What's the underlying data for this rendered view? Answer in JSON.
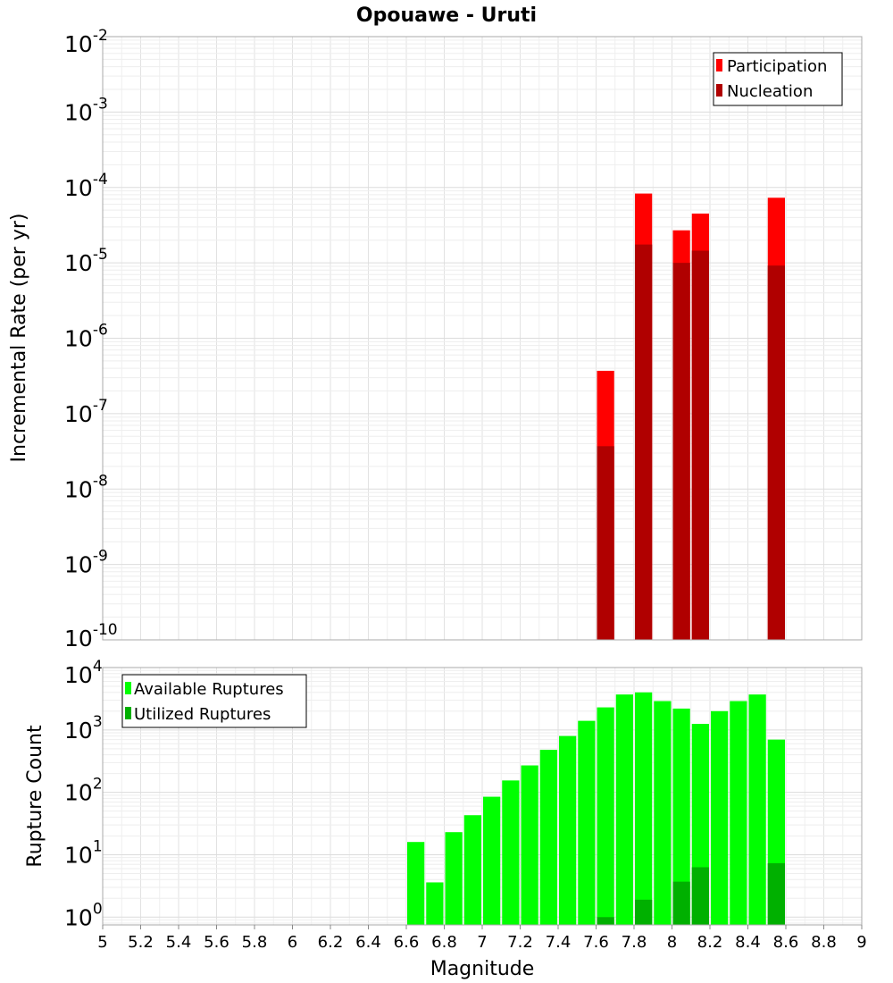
{
  "chart_data": [
    {
      "type": "bar",
      "panel": "top",
      "title": "Opouawe - Uruti",
      "ylabel": "Incremental Rate (per yr)",
      "yscale": "log",
      "ylim": [
        1e-10,
        0.01
      ],
      "xlim": [
        5,
        9
      ],
      "grid": true,
      "legend_position": "top-right",
      "ytick_labels": [
        {
          "base": "10",
          "exp": "-10"
        },
        {
          "base": "10",
          "exp": "-9"
        },
        {
          "base": "10",
          "exp": "-8"
        },
        {
          "base": "10",
          "exp": "-7"
        },
        {
          "base": "10",
          "exp": "-6"
        },
        {
          "base": "10",
          "exp": "-5"
        },
        {
          "base": "10",
          "exp": "-4"
        },
        {
          "base": "10",
          "exp": "-3"
        },
        {
          "base": "10",
          "exp": "-2"
        }
      ],
      "series": [
        {
          "name": "Participation",
          "color": "#ff0000",
          "x": [
            7.65,
            7.85,
            8.05,
            8.15,
            8.55
          ],
          "values": [
            3.7e-07,
            8.3e-05,
            2.7e-05,
            4.5e-05,
            7.3e-05
          ]
        },
        {
          "name": "Nucleation",
          "color": "#b00000",
          "x": [
            7.65,
            7.85,
            8.05,
            8.15,
            8.55
          ],
          "values": [
            3.7e-08,
            1.75e-05,
            1e-05,
            1.45e-05,
            9.2e-06
          ]
        }
      ]
    },
    {
      "type": "bar",
      "panel": "bottom",
      "xlabel": "Magnitude",
      "ylabel": "Rupture Count",
      "yscale": "log",
      "ylim": [
        0.75,
        10000
      ],
      "xlim": [
        5,
        9
      ],
      "grid": true,
      "legend_position": "top-left",
      "xtick_labels": [
        "5",
        "5.2",
        "5.4",
        "5.6",
        "5.8",
        "6",
        "6.2",
        "6.4",
        "6.6",
        "6.8",
        "7",
        "7.2",
        "7.4",
        "7.6",
        "7.8",
        "8",
        "8.2",
        "8.4",
        "8.6",
        "8.8",
        "9"
      ],
      "ytick_labels": [
        {
          "base": "10",
          "exp": "0"
        },
        {
          "base": "10",
          "exp": "1"
        },
        {
          "base": "10",
          "exp": "2"
        },
        {
          "base": "10",
          "exp": "3"
        },
        {
          "base": "10",
          "exp": "4"
        }
      ],
      "series": [
        {
          "name": "Available Ruptures",
          "color": "#00ff00",
          "x": [
            6.65,
            6.75,
            6.85,
            6.95,
            7.05,
            7.15,
            7.25,
            7.35,
            7.45,
            7.55,
            7.65,
            7.75,
            7.85,
            7.95,
            8.05,
            8.15,
            8.25,
            8.35,
            8.45,
            8.55
          ],
          "values": [
            16,
            3.6,
            23,
            43,
            85,
            155,
            270,
            480,
            800,
            1400,
            2300,
            3700,
            4000,
            2900,
            2200,
            1250,
            2000,
            2900,
            3700,
            700
          ]
        },
        {
          "name": "Utilized Ruptures",
          "color": "#00b000",
          "x": [
            7.65,
            7.85,
            8.05,
            8.15,
            8.55
          ],
          "values": [
            1,
            1.9,
            3.7,
            6.3,
            7.3
          ]
        }
      ]
    }
  ]
}
